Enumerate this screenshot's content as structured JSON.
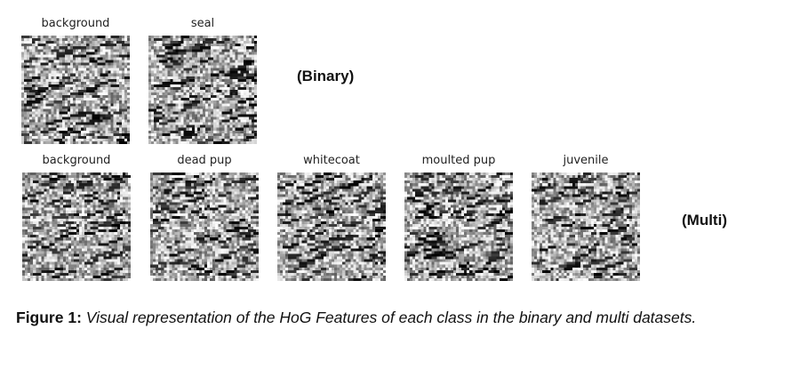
{
  "figure": {
    "binary_row": {
      "tag": "(Binary)",
      "panels": [
        {
          "label": "background"
        },
        {
          "label": "seal"
        }
      ]
    },
    "multi_row": {
      "tag": "(Multi)",
      "panels": [
        {
          "label": "background"
        },
        {
          "label": "dead pup"
        },
        {
          "label": "whitecoat"
        },
        {
          "label": "moulted pup"
        },
        {
          "label": "juvenile"
        }
      ]
    },
    "caption": {
      "label": "Figure 1:",
      "text": "Visual representation of the HoG Features of each class in the binary and multi datasets."
    }
  }
}
